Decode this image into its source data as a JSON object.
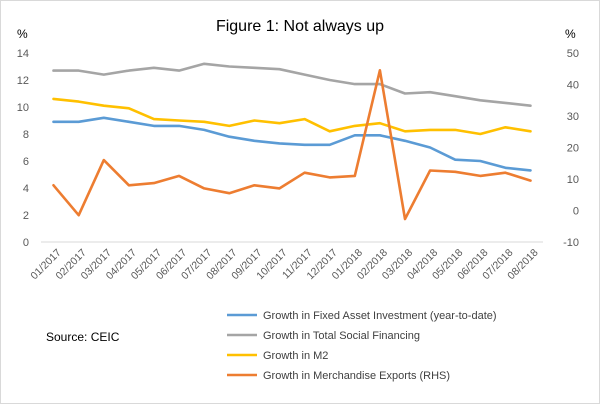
{
  "chart_data": {
    "type": "line",
    "title": "Figure 1: Not always up",
    "y_left": {
      "unit_label": "%",
      "ticks": [
        0,
        2,
        4,
        6,
        8,
        10,
        12,
        14
      ],
      "range": [
        0,
        14
      ]
    },
    "y_right": {
      "unit_label": "%",
      "ticks": [
        -10,
        0,
        10,
        20,
        30,
        40,
        50
      ],
      "range": [
        -10,
        50
      ]
    },
    "categories": [
      "01/2017",
      "02/2017",
      "03/2017",
      "04/2017",
      "05/2017",
      "06/2017",
      "07/2017",
      "08/2017",
      "09/2017",
      "10/2017",
      "11/2017",
      "12/2017",
      "01/2018",
      "02/2018",
      "03/2018",
      "04/2018",
      "05/2018",
      "06/2018",
      "07/2018",
      "08/2018"
    ],
    "series": [
      {
        "name": "Growth in Fixed Asset Investment (year-to-date)",
        "axis": "left",
        "color": "#5b9bd5",
        "values": [
          8.9,
          8.9,
          9.2,
          8.9,
          8.6,
          8.6,
          8.3,
          7.8,
          7.5,
          7.3,
          7.2,
          7.2,
          7.9,
          7.9,
          7.5,
          7.0,
          6.1,
          6.0,
          5.5,
          5.3
        ]
      },
      {
        "name": "Growth in Total Social Financing",
        "axis": "left",
        "color": "#a5a5a5",
        "values": [
          12.7,
          12.7,
          12.4,
          12.7,
          12.9,
          12.7,
          13.2,
          13.0,
          12.9,
          12.8,
          12.4,
          12.0,
          11.7,
          11.7,
          11.0,
          11.1,
          10.8,
          10.5,
          10.3,
          10.1
        ]
      },
      {
        "name": "Growth in M2",
        "axis": "left",
        "color": "#ffc000",
        "values": [
          10.6,
          10.4,
          10.1,
          9.9,
          9.1,
          9.0,
          8.9,
          8.6,
          9.0,
          8.8,
          9.1,
          8.2,
          8.6,
          8.8,
          8.2,
          8.3,
          8.3,
          8.0,
          8.5,
          8.2
        ]
      },
      {
        "name": "Growth in Merchandise Exports (RHS)",
        "axis": "right",
        "color": "#ed7d31",
        "values": [
          8,
          -1.5,
          16,
          8,
          8.7,
          11,
          7,
          5.5,
          8,
          7,
          12,
          10.5,
          11,
          44.5,
          -2.7,
          12.7,
          12.3,
          11,
          12,
          9.5
        ]
      }
    ],
    "grid": false,
    "legend_position": "bottom-right"
  },
  "source": "Source: CEIC"
}
